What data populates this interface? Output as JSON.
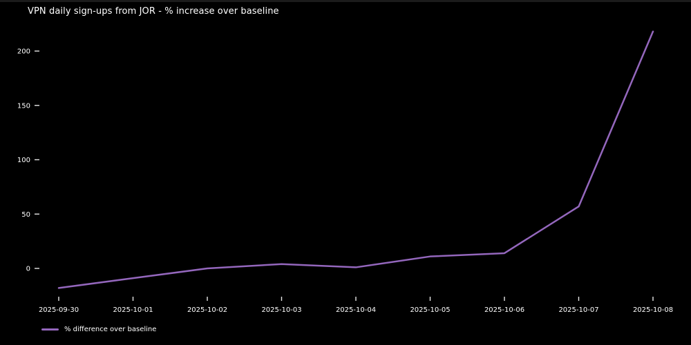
{
  "colors": {
    "background": "#000000",
    "text": "#ffffff",
    "tick": "#e8e8e8",
    "line": "#9467bd",
    "window_top_strip": "#1b1b1b"
  },
  "chart_data": {
    "type": "line",
    "title": "VPN daily sign-ups from JOR - % increase over baseline",
    "x": [
      "2025-09-30",
      "2025-10-01",
      "2025-10-02",
      "2025-10-03",
      "2025-10-04",
      "2025-10-05",
      "2025-10-06",
      "2025-10-07",
      "2025-10-08"
    ],
    "series": [
      {
        "name": "% difference over baseline",
        "values": [
          -18,
          -9,
          0,
          4,
          1,
          11,
          14,
          57,
          218
        ],
        "color": "#9467bd"
      }
    ],
    "xlabel": "",
    "ylabel": "",
    "yticks": [
      0,
      50,
      100,
      150,
      200
    ],
    "ylim": [
      -26,
      222
    ],
    "grid": false,
    "legend_position": "lower-left",
    "plot_background": "#000000"
  },
  "legend": {
    "label": "% difference over baseline"
  }
}
